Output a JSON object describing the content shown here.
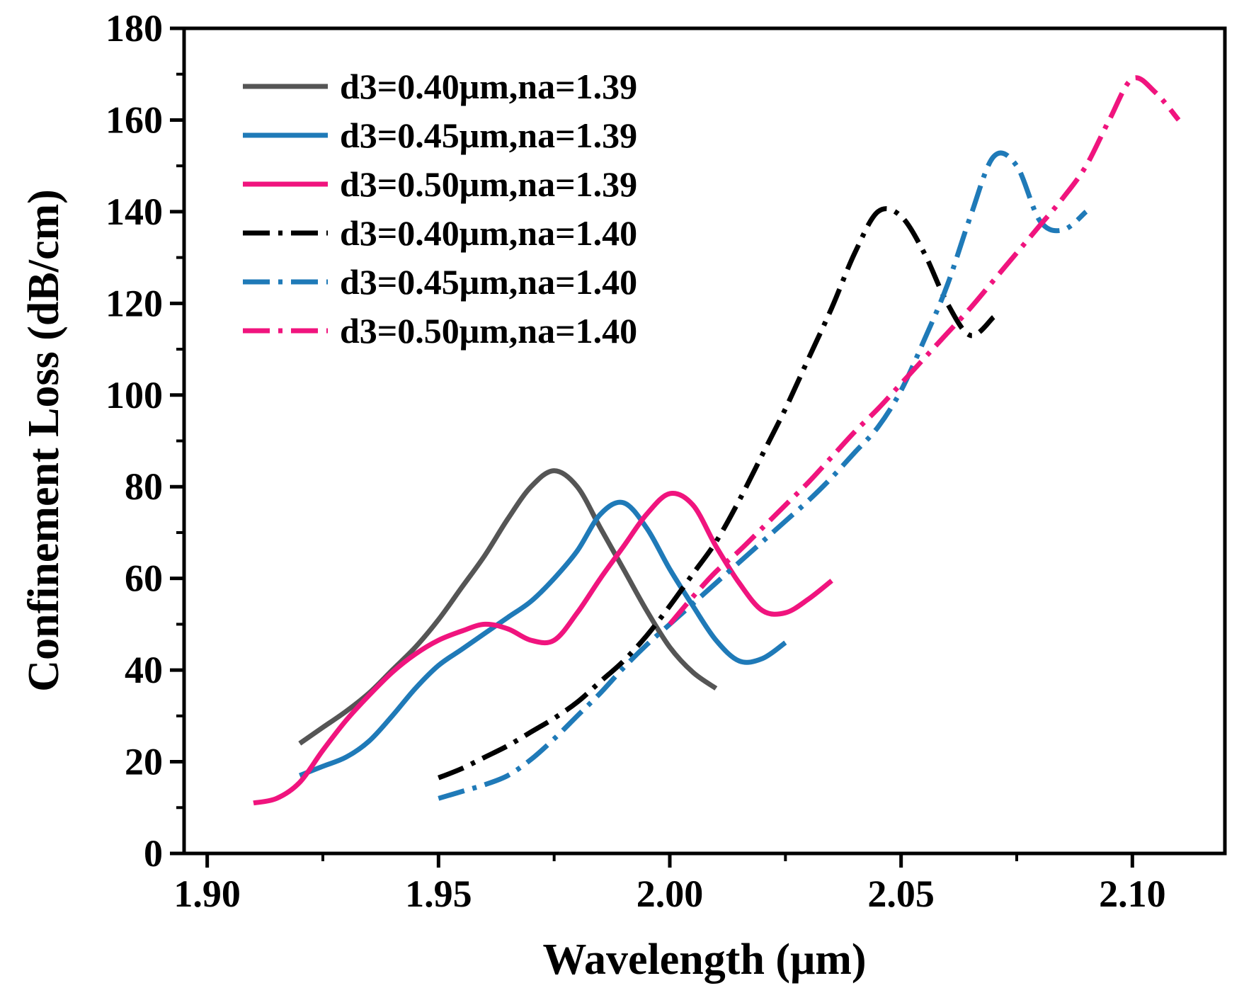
{
  "chart_data": {
    "type": "line",
    "title": "",
    "xlabel": "Wavelength (μm)",
    "ylabel": "Confinement Loss (dB/cm)",
    "xlim": [
      1.895,
      2.12
    ],
    "ylim": [
      0,
      180
    ],
    "xticks": [
      1.9,
      1.95,
      2.0,
      2.05,
      2.1
    ],
    "xtick_labels": [
      "1.90",
      "1.95",
      "2.00",
      "2.05",
      "2.10"
    ],
    "yticks": [
      0,
      20,
      40,
      60,
      80,
      100,
      120,
      140,
      160,
      180
    ],
    "ytick_labels": [
      "0",
      "20",
      "40",
      "60",
      "80",
      "100",
      "120",
      "140",
      "160",
      "180"
    ],
    "grid": false,
    "legend_position": "top-left",
    "series": [
      {
        "name": "d3=0.40μm,na=1.39",
        "color": "#555555",
        "style": "solid",
        "x": [
          1.92,
          1.925,
          1.93,
          1.935,
          1.94,
          1.945,
          1.95,
          1.955,
          1.96,
          1.965,
          1.97,
          1.975,
          1.98,
          1.985,
          1.99,
          1.995,
          2.0,
          2.005,
          2.01
        ],
        "y": [
          24,
          27.5,
          31,
          35,
          40,
          45,
          51,
          58,
          65,
          73,
          80,
          83.5,
          80,
          71,
          62,
          53,
          45,
          39.5,
          36
        ]
      },
      {
        "name": "d3=0.45μm,na=1.39",
        "color": "#1f7ab8",
        "style": "solid",
        "x": [
          1.92,
          1.925,
          1.93,
          1.935,
          1.94,
          1.945,
          1.95,
          1.955,
          1.96,
          1.965,
          1.97,
          1.975,
          1.98,
          1.985,
          1.99,
          1.995,
          2.0,
          2.005,
          2.01,
          2.015,
          2.02,
          2.025
        ],
        "y": [
          17,
          19,
          21,
          24.5,
          30,
          36,
          41,
          44.5,
          48,
          51.5,
          55,
          60,
          66,
          74,
          76.5,
          71,
          62,
          54,
          46.5,
          42,
          42.5,
          46
        ]
      },
      {
        "name": "d3=0.50μm,na=1.39",
        "color": "#f0147e",
        "style": "solid",
        "x": [
          1.91,
          1.915,
          1.92,
          1.925,
          1.93,
          1.935,
          1.94,
          1.945,
          1.95,
          1.955,
          1.96,
          1.965,
          1.97,
          1.975,
          1.98,
          1.985,
          1.99,
          1.995,
          2.0,
          2.005,
          2.01,
          2.015,
          2.02,
          2.025,
          2.03,
          2.035
        ],
        "y": [
          11,
          12,
          15.5,
          22.5,
          29,
          34.5,
          39.5,
          43.5,
          46.5,
          48.5,
          50,
          49,
          46.5,
          46.5,
          52.5,
          60,
          67,
          74,
          78.5,
          76,
          67,
          59,
          53,
          52.5,
          55.5,
          59.5
        ]
      },
      {
        "name": "d3=0.40μm,na=1.40",
        "color": "#000000",
        "style": "dashdot",
        "x": [
          1.95,
          1.955,
          1.96,
          1.965,
          1.97,
          1.975,
          1.98,
          1.985,
          1.99,
          1.995,
          2.0,
          2.005,
          2.01,
          2.015,
          2.02,
          2.025,
          2.03,
          2.035,
          2.04,
          2.045,
          2.05,
          2.055,
          2.06,
          2.065,
          2.07
        ],
        "y": [
          16.5,
          18.5,
          21,
          23.5,
          26.5,
          29.5,
          33,
          37.5,
          42,
          47.5,
          54,
          61,
          68,
          77,
          87,
          97,
          108,
          119,
          131,
          140,
          139,
          131,
          120,
          113,
          117
        ]
      },
      {
        "name": "d3=0.45μm,na=1.40",
        "color": "#1f7ab8",
        "style": "dashdot",
        "x": [
          1.95,
          1.955,
          1.96,
          1.965,
          1.97,
          1.975,
          1.98,
          1.985,
          1.99,
          1.995,
          2.0,
          2.005,
          2.01,
          2.015,
          2.02,
          2.025,
          2.03,
          2.035,
          2.04,
          2.045,
          2.05,
          2.055,
          2.06,
          2.065,
          2.07,
          2.075,
          2.08,
          2.085,
          2.09
        ],
        "y": [
          12,
          13.5,
          15,
          17,
          20.5,
          25,
          30,
          35,
          40.5,
          45.5,
          50,
          54.5,
          59,
          63.5,
          68,
          72.5,
          77,
          82,
          87.5,
          93,
          101,
          112,
          124,
          139,
          152,
          150,
          138,
          136,
          140
        ]
      },
      {
        "name": "d3=0.50μm,na=1.40",
        "color": "#f0147e",
        "style": "dashdot",
        "x": [
          2.0,
          2.005,
          2.01,
          2.015,
          2.02,
          2.025,
          2.03,
          2.035,
          2.04,
          2.045,
          2.05,
          2.055,
          2.06,
          2.065,
          2.07,
          2.075,
          2.08,
          2.085,
          2.09,
          2.095,
          2.1,
          2.105,
          2.11
        ],
        "y": [
          50,
          56,
          61.5,
          66,
          71,
          76,
          81,
          86.5,
          92,
          97,
          102.5,
          108,
          113.5,
          119,
          125,
          131,
          137,
          143,
          150,
          160,
          169,
          166,
          160
        ]
      }
    ]
  }
}
